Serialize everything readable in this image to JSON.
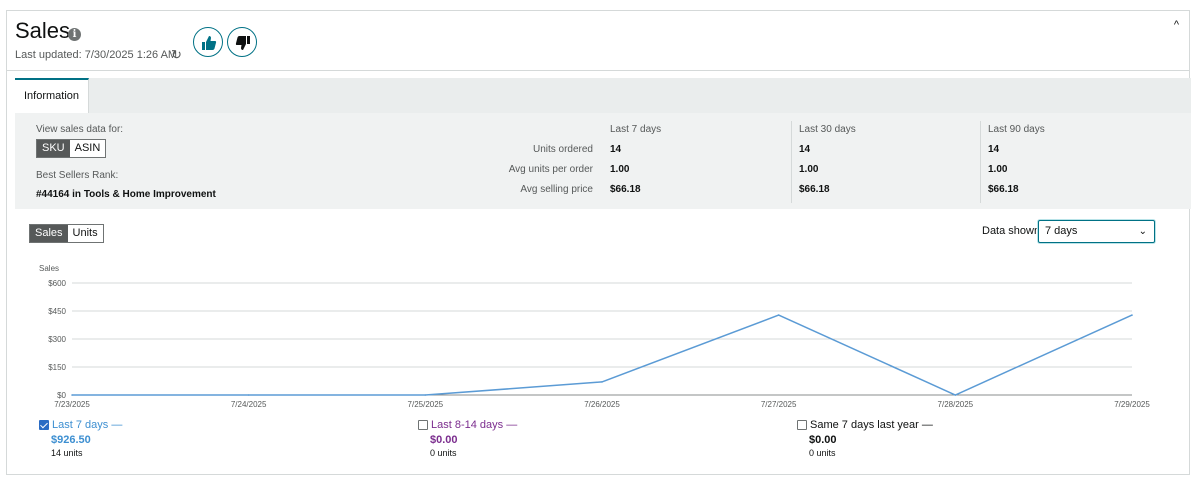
{
  "header": {
    "title": "Sales",
    "info_icon": "i",
    "last_updated": "Last updated: 7/30/2025 1:26 AM",
    "refresh_icon": "↻",
    "collapse_icon": "^"
  },
  "tabs": [
    {
      "label": "Information",
      "active": true
    }
  ],
  "info": {
    "view_label": "View sales data for:",
    "toggle": {
      "options": [
        "SKU",
        "ASIN"
      ],
      "selected": "SKU"
    },
    "bsr_label": "Best Sellers Rank:",
    "bsr_value": "#44164 in Tools & Home Improvement",
    "metric_labels": [
      "Units ordered",
      "Avg units per order",
      "Avg selling price"
    ],
    "columns": [
      {
        "header": "Last 7 days",
        "values": [
          "14",
          "1.00",
          "$66.18"
        ]
      },
      {
        "header": "Last 30 days",
        "values": [
          "14",
          "1.00",
          "$66.18"
        ]
      },
      {
        "header": "Last 90 days",
        "values": [
          "14",
          "1.00",
          "$66.18"
        ]
      }
    ]
  },
  "chart_controls": {
    "toggle": {
      "options": [
        "Sales",
        "Units"
      ],
      "selected": "Sales"
    },
    "data_shown_label": "Data shown",
    "data_shown_value": "7 days"
  },
  "chart_data": {
    "type": "line",
    "ylabel": "Sales",
    "ylim": [
      0,
      600
    ],
    "yticks": [
      "$0",
      "$150",
      "$300",
      "$450",
      "$600"
    ],
    "ytick_values": [
      0,
      150,
      300,
      450,
      600
    ],
    "categories": [
      "7/23/2025",
      "7/24/2025",
      "7/25/2025",
      "7/26/2025",
      "7/27/2025",
      "7/28/2025",
      "7/29/2025"
    ],
    "series": [
      {
        "name": "Last 7 days",
        "values": [
          0,
          0,
          0,
          70,
          428,
          0,
          428
        ],
        "color": "#5b9bd5"
      }
    ],
    "grid": true
  },
  "legend": [
    {
      "label": "Last 7 days",
      "checked": true,
      "amount": "$926.50",
      "units": "14 units",
      "color": "#3d8fd1",
      "amount_color": "#3d8fd1"
    },
    {
      "label": "Last 8-14 days",
      "checked": false,
      "amount": "$0.00",
      "units": "0 units",
      "color": "#7b2d8e",
      "amount_color": "#7b2d8e"
    },
    {
      "label": "Same 7 days last year",
      "checked": false,
      "amount": "$0.00",
      "units": "0 units",
      "color": "#0f1111",
      "amount_color": "#0f1111"
    }
  ]
}
